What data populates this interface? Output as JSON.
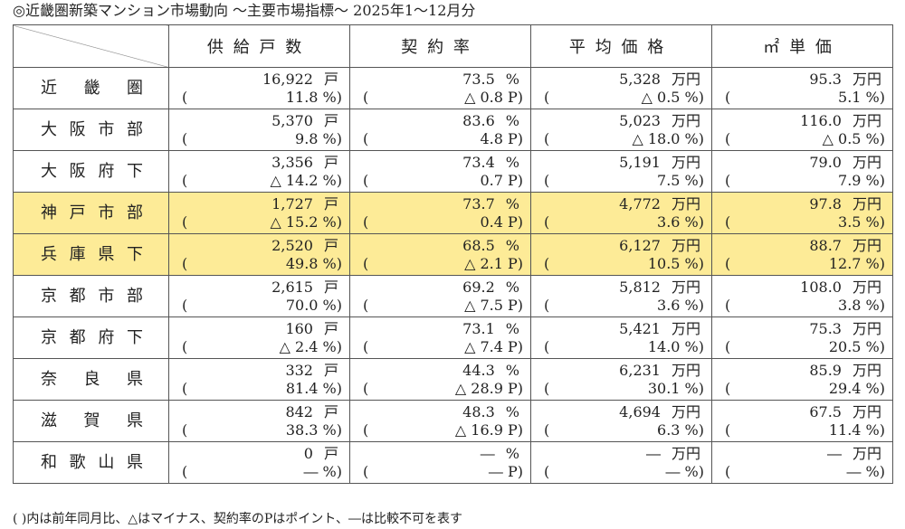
{
  "title": "◎近畿圏新築マンション市場動向 ～主要市場指標～ 2025年1～12月分",
  "headers": [
    "供給戸数",
    "契約率",
    "平均価格",
    "㎡単価"
  ],
  "units": {
    "supply": "戸",
    "rate": "%",
    "price": "万円",
    "unit_price": "万円"
  },
  "rows": [
    {
      "name": "近畿圏",
      "supply": "16,922",
      "supply_chg": "11.8 %)",
      "rate": "73.5",
      "rate_chg": "△ 0.8 P)",
      "price": "5,328",
      "price_chg": "△ 0.5 %)",
      "unit_price": "95.3",
      "unit_price_chg": "5.1 %)",
      "highlight": false
    },
    {
      "name": "大阪市部",
      "supply": "5,370",
      "supply_chg": "9.8 %)",
      "rate": "83.6",
      "rate_chg": "4.8 P)",
      "price": "5,023",
      "price_chg": "△ 18.0 %)",
      "unit_price": "116.0",
      "unit_price_chg": "△ 0.5 %)",
      "highlight": false
    },
    {
      "name": "大阪府下",
      "supply": "3,356",
      "supply_chg": "△ 14.2 %)",
      "rate": "73.4",
      "rate_chg": "0.7 P)",
      "price": "5,191",
      "price_chg": "7.5 %)",
      "unit_price": "79.0",
      "unit_price_chg": "7.9 %)",
      "highlight": false
    },
    {
      "name": "神戸市部",
      "supply": "1,727",
      "supply_chg": "△ 15.2 %)",
      "rate": "73.7",
      "rate_chg": "0.4 P)",
      "price": "4,772",
      "price_chg": "3.6 %)",
      "unit_price": "97.8",
      "unit_price_chg": "3.5 %)",
      "highlight": true
    },
    {
      "name": "兵庫県下",
      "supply": "2,520",
      "supply_chg": "49.8 %)",
      "rate": "68.5",
      "rate_chg": "△ 2.1 P)",
      "price": "6,127",
      "price_chg": "10.5 %)",
      "unit_price": "88.7",
      "unit_price_chg": "12.7 %)",
      "highlight": true
    },
    {
      "name": "京都市部",
      "supply": "2,615",
      "supply_chg": "70.0 %)",
      "rate": "69.2",
      "rate_chg": "△ 7.5 P)",
      "price": "5,812",
      "price_chg": "3.6 %)",
      "unit_price": "108.0",
      "unit_price_chg": "3.8 %)",
      "highlight": false
    },
    {
      "name": "京都府下",
      "supply": "160",
      "supply_chg": "△ 2.4 %)",
      "rate": "73.1",
      "rate_chg": "△ 7.4 P)",
      "price": "5,421",
      "price_chg": "14.0 %)",
      "unit_price": "75.3",
      "unit_price_chg": "20.5 %)",
      "highlight": false
    },
    {
      "name": "奈良県",
      "supply": "332",
      "supply_chg": "81.4 %)",
      "rate": "44.3",
      "rate_chg": "△ 28.9 P)",
      "price": "6,231",
      "price_chg": "30.1 %)",
      "unit_price": "85.9",
      "unit_price_chg": "29.4 %)",
      "highlight": false
    },
    {
      "name": "滋賀県",
      "supply": "842",
      "supply_chg": "38.3 %)",
      "rate": "48.3",
      "rate_chg": "△ 16.9 P)",
      "price": "4,694",
      "price_chg": "6.3 %)",
      "unit_price": "67.5",
      "unit_price_chg": "11.4 %)",
      "highlight": false
    },
    {
      "name": "和歌山県",
      "supply": "0",
      "supply_chg": "― %)",
      "rate": "―",
      "rate_chg": "― P)",
      "price": "―",
      "price_chg": "― %)",
      "unit_price": "―",
      "unit_price_chg": "― %)",
      "highlight": false
    }
  ],
  "note": "( )内は前年同月比、△はマイナス、契約率のPはポイント、―は比較不可を表す",
  "colors": {
    "highlight": "#fdeb97",
    "border": "#555555"
  }
}
